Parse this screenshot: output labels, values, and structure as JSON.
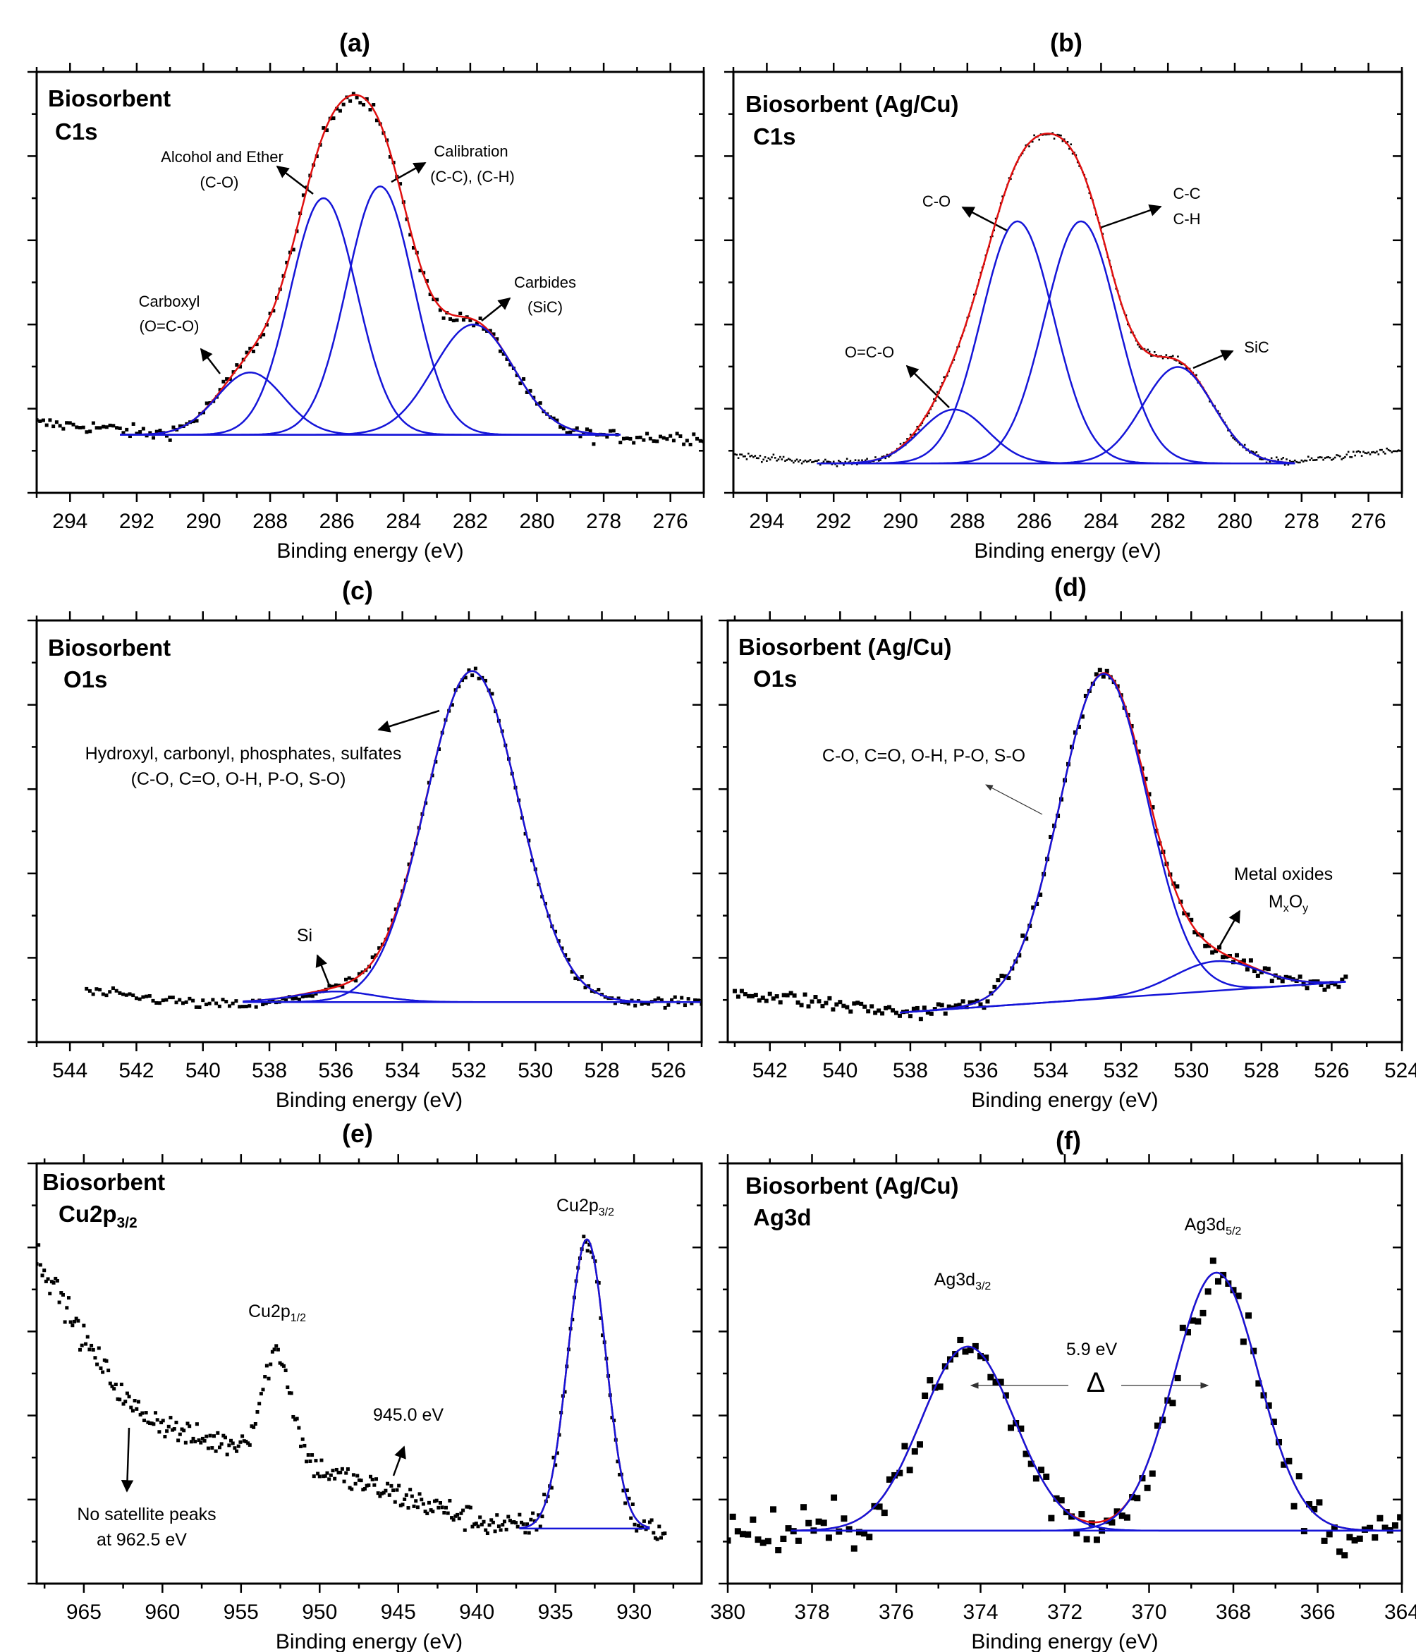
{
  "colors": {
    "data": "#000000",
    "component": "#1515d8",
    "envelope": "#e01010",
    "frame": "#000000"
  },
  "chart_data": [
    {
      "id": "a",
      "type": "scatter",
      "panel_label": "(a)",
      "sample": "Biosorbent",
      "region": "C1s",
      "xlabel": "Binding energy (eV)",
      "ylabel": "",
      "xlim": [
        295,
        275
      ],
      "ylim": [
        0,
        1
      ],
      "x_reversed": true,
      "xticks": [
        294,
        292,
        290,
        288,
        286,
        284,
        282,
        280,
        278,
        276
      ],
      "xtick_labels": [
        "294",
        "292",
        "290",
        "288",
        "286",
        "284",
        "282",
        "280",
        "278",
        "276"
      ],
      "x_minor_step": 1,
      "fit": {
        "range": [
          292.5,
          277.5
        ],
        "baseline": [
          0.138,
          0.138
        ],
        "components": [
          {
            "label": "Carboxyl (O=C-O)",
            "center": 288.6,
            "height": 0.148,
            "sigma": 1.0
          },
          {
            "label": "Alcohol and Ether (C-O)",
            "center": 286.4,
            "height": 0.562,
            "sigma": 1.0
          },
          {
            "label": "Calibration (C-C), (C-H)",
            "center": 284.7,
            "height": 0.59,
            "sigma": 1.0
          },
          {
            "label": "Carbides (SiC)",
            "center": 281.9,
            "height": 0.262,
            "sigma": 1.2
          }
        ]
      },
      "data": {
        "range": [
          295,
          275
        ],
        "background": [
          [
            295,
            0.165
          ],
          [
            293,
            0.155
          ],
          [
            291.5,
            0.138
          ],
          [
            275,
            0.132
          ]
        ],
        "extra_peaks": []
      },
      "annotations": {
        "alcohol": "Alcohol and Ether",
        "alcohol_sub": "(C-O)",
        "calib": "Calibration",
        "calib_sub": "(C-C), (C-H)",
        "carboxyl": "Carboxyl",
        "carboxyl_sub": "(O=C-O)",
        "carbides": "Carbides",
        "carbides_sub": "(SiC)"
      }
    },
    {
      "id": "b",
      "type": "scatter",
      "panel_label": "(b)",
      "sample": "Biosorbent (Ag/Cu)",
      "region": "C1s",
      "xlabel": "Binding energy (eV)",
      "ylabel": "",
      "xlim": [
        295,
        275
      ],
      "ylim": [
        0,
        1
      ],
      "x_reversed": true,
      "xticks": [
        294,
        292,
        290,
        288,
        286,
        284,
        282,
        280,
        278,
        276
      ],
      "xtick_labels": [
        "294",
        "292",
        "290",
        "288",
        "286",
        "284",
        "282",
        "280",
        "278",
        "276"
      ],
      "x_minor_step": 1,
      "fit": {
        "range": [
          292.5,
          278.2
        ],
        "baseline": [
          0.07,
          0.07
        ],
        "components": [
          {
            "label": "O=C-O",
            "center": 288.4,
            "height": 0.128,
            "sigma": 1.0
          },
          {
            "label": "C-O",
            "center": 286.5,
            "height": 0.575,
            "sigma": 1.08
          },
          {
            "label": "C-C C-H",
            "center": 284.6,
            "height": 0.575,
            "sigma": 1.08
          },
          {
            "label": "SiC",
            "center": 281.7,
            "height": 0.229,
            "sigma": 1.05
          }
        ]
      },
      "data": {
        "range": [
          295,
          275
        ],
        "background": [
          [
            295,
            0.09
          ],
          [
            293,
            0.075
          ],
          [
            291,
            0.07
          ],
          [
            279,
            0.07
          ],
          [
            278,
            0.075
          ],
          [
            276,
            0.095
          ],
          [
            275,
            0.1
          ]
        ],
        "extra_peaks": []
      },
      "annotations": {
        "co": "C-O",
        "cc": "C-C",
        "ch": "C-H",
        "oco": "O=C-O",
        "sic": "SiC"
      }
    },
    {
      "id": "c",
      "type": "scatter",
      "panel_label": "(c)",
      "sample": "Biosorbent",
      "region": "O1s",
      "xlabel": "Binding energy (eV)",
      "ylabel": "",
      "xlim": [
        545,
        525
      ],
      "ylim": [
        0,
        1
      ],
      "x_reversed": true,
      "xticks": [
        544,
        542,
        540,
        538,
        536,
        534,
        532,
        530,
        528,
        526
      ],
      "xtick_labels": [
        "544",
        "542",
        "540",
        "538",
        "536",
        "534",
        "532",
        "530",
        "528",
        "526"
      ],
      "x_minor_step": 1,
      "fit": {
        "range": [
          538.8,
          525.0
        ],
        "baseline": [
          0.095,
          0.095
        ],
        "components": [
          {
            "label": "Si",
            "center": 536.0,
            "height": 0.025,
            "sigma": 1.2
          },
          {
            "label": "Hydroxyl, carbonyl, phosphates, sulfates",
            "center": 531.9,
            "height": 0.785,
            "sigma": 1.4
          }
        ]
      },
      "data": {
        "range": [
          543.5,
          525
        ],
        "background": [
          [
            543.5,
            0.12
          ],
          [
            540,
            0.09
          ],
          [
            538,
            0.085
          ],
          [
            536,
            0.095
          ],
          [
            525,
            0.095
          ]
        ],
        "extra_peaks": []
      },
      "annotations": {
        "groups": "Hydroxyl, carbonyl, phosphates, sulfates",
        "groups_sub": "(C-O, C=O, O-H, P-O, S-O)",
        "si": "Si"
      }
    },
    {
      "id": "d",
      "type": "scatter",
      "panel_label": "(d)",
      "sample": "Biosorbent (Ag/Cu)",
      "region": "O1s",
      "xlabel": "Binding energy (eV)",
      "ylabel": "",
      "xlim": [
        543.2,
        524
      ],
      "ylim": [
        0,
        1
      ],
      "x_reversed": true,
      "xticks": [
        542,
        540,
        538,
        536,
        534,
        532,
        530,
        528,
        526,
        524
      ],
      "xtick_labels": [
        "542",
        "540",
        "538",
        "536",
        "534",
        "532",
        "530",
        "528",
        "526",
        "524"
      ],
      "x_minor_step": 1,
      "fit": {
        "range": [
          538.3,
          525.6
        ],
        "baseline": [
          0.07,
          0.143
        ],
        "components": [
          {
            "label": "C-O, C=O, O-H, P-O, S-O",
            "center": 532.5,
            "height": 0.77,
            "sigma": 1.25
          },
          {
            "label": "Metal oxides MxOy",
            "center": 529.3,
            "height": 0.07,
            "sigma": 1.2
          }
        ]
      },
      "data": {
        "range": [
          543,
          525.6
        ],
        "background": [
          [
            543,
            0.12
          ],
          [
            538.3,
            0.07
          ],
          [
            525.6,
            0.143
          ]
        ],
        "extra_peaks": []
      },
      "annotations": {
        "groups": "C-O, C=O, O-H, P-O, S-O",
        "metal": "Metal oxides",
        "m": "M",
        "x": "x",
        "o": "O",
        "y": "y"
      }
    },
    {
      "id": "e",
      "type": "scatter",
      "panel_label": "(e)",
      "sample": "Biosorbent",
      "region": "Cu2p",
      "region_sub": "3/2",
      "xlabel": "Binding energy (eV)",
      "ylabel": "",
      "xlim": [
        968,
        925.7
      ],
      "ylim": [
        0,
        1
      ],
      "x_reversed": true,
      "xticks": [
        965,
        960,
        955,
        950,
        945,
        940,
        935,
        930
      ],
      "xtick_labels": [
        "965",
        "960",
        "955",
        "950",
        "945",
        "940",
        "935",
        "930"
      ],
      "x_minor_step": 2.5,
      "fit": {
        "range": [
          937.3,
          929.0
        ],
        "baseline": [
          0.131,
          0.131
        ],
        "components": [
          {
            "label": "Cu2p3/2",
            "center": 933.0,
            "height": 0.688,
            "sigma": 1.2
          }
        ]
      },
      "data": {
        "range": [
          968,
          928
        ],
        "background": [
          [
            968,
            0.786
          ],
          [
            965,
            0.58
          ],
          [
            962,
            0.42
          ],
          [
            958,
            0.345
          ],
          [
            955,
            0.33
          ],
          [
            950,
            0.27
          ],
          [
            945,
            0.21
          ],
          [
            940,
            0.15
          ],
          [
            937,
            0.13
          ],
          [
            928,
            0.125
          ]
        ],
        "extra_peaks": [
          {
            "label": "Cu2p1/2",
            "center": 952.7,
            "height": 0.25,
            "sigma": 0.9
          }
        ]
      },
      "annotations": {
        "cu32": "Cu2p",
        "cu32_sub": "3/2",
        "cu12": "Cu2p",
        "cu12_sub": "1/2",
        "sat": "945.0 eV",
        "nosat": "No satellite peaks",
        "nosat_sub": "at 962.5 eV"
      }
    },
    {
      "id": "f",
      "type": "scatter",
      "panel_label": "(f)",
      "sample": "Biosorbent (Ag/Cu)",
      "region": "Ag3d",
      "xlabel": "Binding energy (eV)",
      "ylabel": "",
      "xlim": [
        380,
        364
      ],
      "ylim": [
        0,
        1
      ],
      "x_reversed": true,
      "xticks": [
        380,
        378,
        376,
        374,
        372,
        370,
        368,
        366,
        364
      ],
      "xtick_labels": [
        "380",
        "378",
        "376",
        "374",
        "372",
        "370",
        "368",
        "366",
        "364"
      ],
      "x_minor_step": 1,
      "fit": {
        "range": [
          378.5,
          364.0
        ],
        "baseline": [
          0.126,
          0.126
        ],
        "components": [
          {
            "label": "Ag3d3/2",
            "center": 374.3,
            "height": 0.438,
            "sigma": 1.1
          },
          {
            "label": "Ag3d5/2",
            "center": 368.4,
            "height": 0.614,
            "sigma": 1.0
          }
        ]
      },
      "data": {
        "range": [
          380,
          364
        ],
        "background": [
          [
            380,
            0.12
          ],
          [
            364,
            0.12
          ]
        ],
        "extra_peaks": []
      },
      "annotations": {
        "ag32": "Ag3d",
        "ag32_sub": "3/2",
        "ag52": "Ag3d",
        "ag52_sub": "5/2",
        "split": "5.9 eV",
        "delta": "Δ"
      }
    }
  ]
}
